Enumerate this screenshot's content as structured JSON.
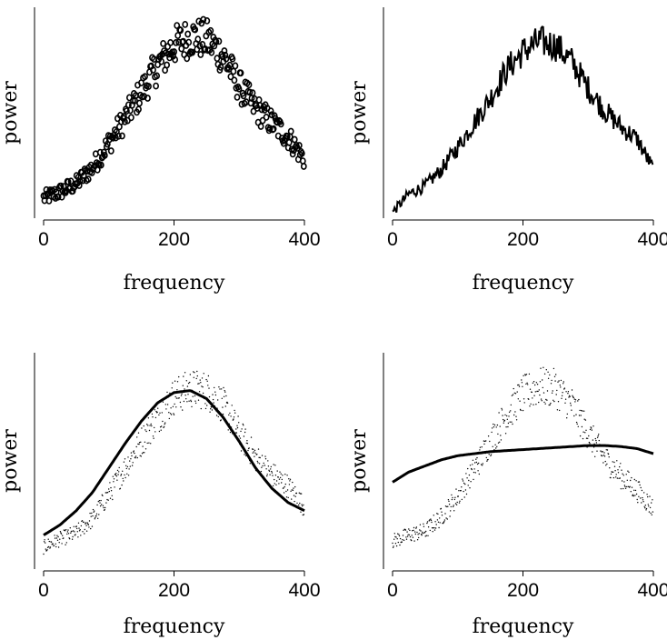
{
  "chart_data": [
    {
      "type": "scatter",
      "xlabel": "frequency",
      "ylabel": "power",
      "xlim": [
        0,
        400
      ],
      "ylim": [
        0,
        1
      ],
      "xticks": [
        "0",
        "200",
        "400"
      ],
      "marker": "open circle",
      "series": [
        {
          "x": [
            0,
            25,
            50,
            75,
            100,
            125,
            150,
            175,
            200,
            225,
            250,
            275,
            300,
            325,
            350,
            375,
            400
          ],
          "y": [
            0.09,
            0.12,
            0.16,
            0.24,
            0.36,
            0.48,
            0.61,
            0.74,
            0.84,
            0.88,
            0.87,
            0.79,
            0.64,
            0.53,
            0.46,
            0.39,
            0.28
          ]
        }
      ]
    },
    {
      "type": "line",
      "xlabel": "frequency",
      "ylabel": "power",
      "xlim": [
        0,
        400
      ],
      "ylim": [
        0,
        1
      ],
      "xticks": [
        "0",
        "200",
        "400"
      ],
      "series": [
        {
          "x": [
            0,
            25,
            50,
            75,
            100,
            125,
            150,
            175,
            200,
            225,
            250,
            275,
            300,
            325,
            350,
            375,
            400
          ],
          "y": [
            0.02,
            0.11,
            0.15,
            0.23,
            0.34,
            0.46,
            0.58,
            0.72,
            0.81,
            0.86,
            0.84,
            0.76,
            0.63,
            0.52,
            0.44,
            0.38,
            0.23
          ]
        }
      ]
    },
    {
      "type": "scatter",
      "xlabel": "frequency",
      "ylabel": "power",
      "xlim": [
        0,
        400
      ],
      "ylim": [
        0,
        1
      ],
      "xticks": [
        "0",
        "200",
        "400"
      ],
      "marker": "dot",
      "fit": {
        "x": [
          0,
          25,
          50,
          75,
          100,
          125,
          150,
          175,
          200,
          225,
          250,
          275,
          300,
          325,
          350,
          375,
          400
        ],
        "y": [
          0.14,
          0.19,
          0.26,
          0.35,
          0.47,
          0.59,
          0.7,
          0.79,
          0.84,
          0.85,
          0.81,
          0.72,
          0.6,
          0.47,
          0.37,
          0.3,
          0.26
        ]
      },
      "series": [
        {
          "x": [
            0,
            25,
            50,
            75,
            100,
            125,
            150,
            175,
            200,
            225,
            250,
            275,
            300,
            325,
            350,
            375,
            400
          ],
          "y": [
            0.08,
            0.12,
            0.15,
            0.22,
            0.34,
            0.47,
            0.6,
            0.72,
            0.82,
            0.86,
            0.85,
            0.78,
            0.64,
            0.52,
            0.44,
            0.38,
            0.28
          ]
        }
      ]
    },
    {
      "type": "scatter",
      "xlabel": "frequency",
      "ylabel": "power",
      "xlim": [
        0,
        400
      ],
      "ylim": [
        0,
        1
      ],
      "xticks": [
        "0",
        "200",
        "400"
      ],
      "marker": "dot",
      "fit": {
        "x": [
          0,
          25,
          50,
          75,
          100,
          125,
          150,
          175,
          200,
          225,
          250,
          275,
          300,
          325,
          350,
          375,
          400
        ],
        "y": [
          0.4,
          0.45,
          0.48,
          0.51,
          0.53,
          0.54,
          0.55,
          0.555,
          0.56,
          0.565,
          0.57,
          0.575,
          0.58,
          0.58,
          0.575,
          0.565,
          0.54
        ]
      },
      "series": [
        {
          "x": [
            0,
            25,
            50,
            75,
            100,
            125,
            150,
            175,
            200,
            225,
            250,
            275,
            300,
            325,
            350,
            375,
            400
          ],
          "y": [
            0.11,
            0.14,
            0.16,
            0.23,
            0.33,
            0.46,
            0.6,
            0.73,
            0.83,
            0.87,
            0.86,
            0.78,
            0.64,
            0.52,
            0.43,
            0.36,
            0.27
          ]
        }
      ]
    }
  ]
}
